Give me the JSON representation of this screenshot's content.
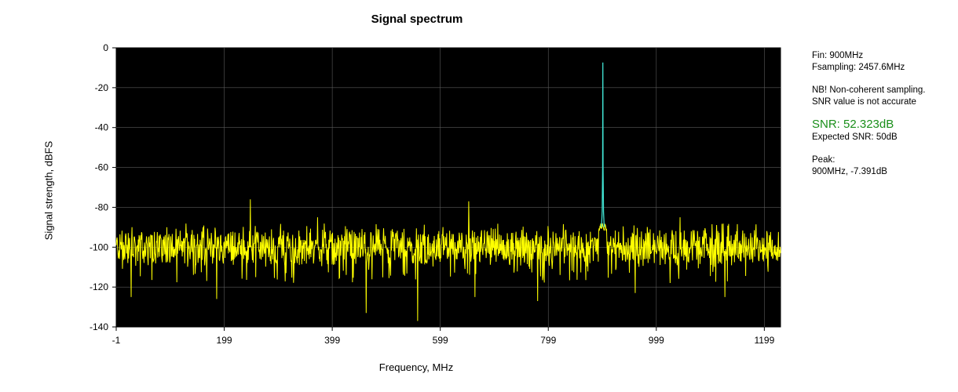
{
  "chart_data": {
    "type": "line",
    "title": "Signal spectrum",
    "xlabel": "Frequency, MHz",
    "ylabel": "Signal strength, dBFS",
    "xlim": [
      -1,
      1229
    ],
    "ylim": [
      -140,
      0
    ],
    "x_ticks": [
      -1,
      199,
      399,
      599,
      799,
      999,
      1199
    ],
    "y_ticks": [
      0,
      -20,
      -40,
      -60,
      -80,
      -100,
      -120,
      -140
    ],
    "grid": true,
    "background": "#000000",
    "series": [
      {
        "color": "#ffff00",
        "noise_floor_db": -100,
        "spurs": [
          {
            "x": 247,
            "y": -76
          },
          {
            "x": 372,
            "y": -85
          },
          {
            "x": 652,
            "y": -77
          },
          {
            "x": 1043,
            "y": -85
          }
        ],
        "dips": [
          {
            "x": 27,
            "y": -125
          },
          {
            "x": 185,
            "y": -126
          },
          {
            "x": 462,
            "y": -133
          },
          {
            "x": 557,
            "y": -137
          },
          {
            "x": 663,
            "y": -125
          },
          {
            "x": 779,
            "y": -127
          },
          {
            "x": 960,
            "y": -123
          },
          {
            "x": 1126,
            "y": -125
          }
        ]
      },
      {
        "color": "#40e0d0",
        "peak": {
          "x": 900,
          "y": -7.391
        }
      }
    ]
  },
  "info": {
    "fin": "Fin: 900MHz",
    "fsampling": "Fsampling: 2457.6MHz",
    "warning_line1": "NB! Non-coherent sampling.",
    "warning_line2": "SNR value is not accurate",
    "snr": "SNR: 52.323dB",
    "expected_snr": "Expected SNR: 50dB",
    "peak_label": "Peak:",
    "peak_value": "900MHz, -7.391dB",
    "snr_color": "#1a8f1a"
  }
}
